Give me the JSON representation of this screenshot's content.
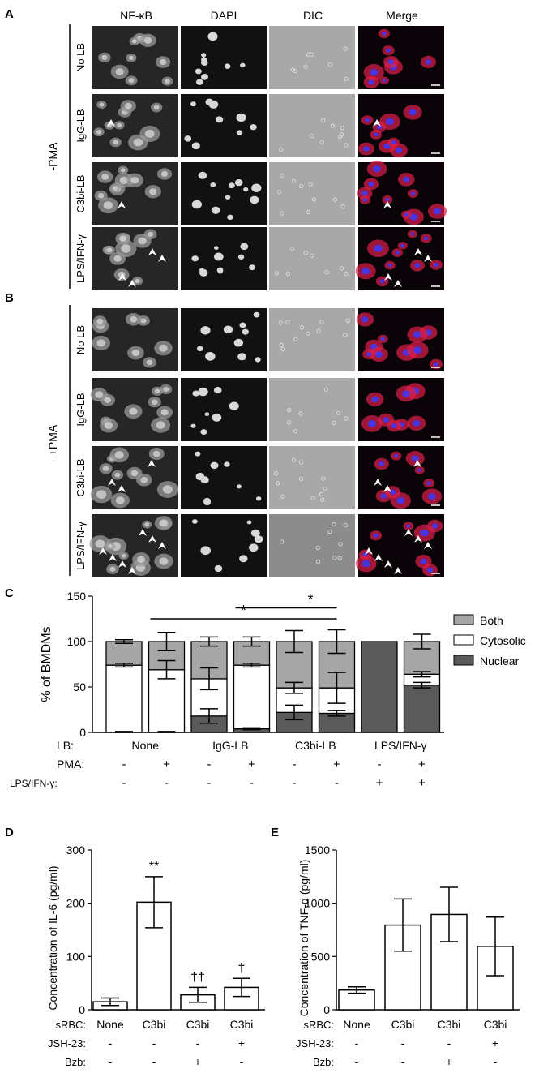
{
  "micrograph": {
    "columns": [
      "NF-κB",
      "DAPI",
      "DIC",
      "Merge"
    ],
    "panel_a": {
      "letter": "A",
      "condition": "-PMA",
      "rows": [
        {
          "label": "No LB",
          "arrowheads": 0
        },
        {
          "label": "IgG-LB",
          "arrowheads": 1
        },
        {
          "label": "C3bi-LB",
          "arrowheads": 1
        },
        {
          "label": "LPS/IFN-γ",
          "arrowheads": 4
        }
      ]
    },
    "panel_b": {
      "letter": "B",
      "condition": "+PMA",
      "rows": [
        {
          "label": "No LB",
          "arrowheads": 0
        },
        {
          "label": "IgG-LB",
          "arrowheads": 0
        },
        {
          "label": "C3bi-LB",
          "arrowheads": 3
        },
        {
          "label": "LPS/IFN-γ",
          "arrowheads": 7
        }
      ]
    },
    "colors": {
      "nfkb_red": "#e0204a",
      "dapi_blue": "#3a3aff",
      "dic_gray": "#a8a8a8"
    }
  },
  "chart_data": [
    {
      "panel": "C",
      "type": "bar",
      "stacked": true,
      "ylabel": "% of BMDMs",
      "ylim": [
        0,
        150
      ],
      "yticks": [
        0,
        50,
        100,
        150
      ],
      "bars": [
        {
          "nuclear": 0,
          "cytosolic": 74,
          "both": 26,
          "err_nuclear": 1,
          "err_cytosolic": 2,
          "err_both": 2
        },
        {
          "nuclear": 0,
          "cytosolic": 69,
          "both": 31,
          "err_nuclear": 1,
          "err_cytosolic": 10,
          "err_both": 10
        },
        {
          "nuclear": 18,
          "cytosolic": 41,
          "both": 41,
          "err_nuclear": 8,
          "err_cytosolic": 12,
          "err_both": 5
        },
        {
          "nuclear": 4,
          "cytosolic": 70,
          "both": 26,
          "err_nuclear": 1,
          "err_cytosolic": 2,
          "err_both": 5
        },
        {
          "nuclear": 22,
          "cytosolic": 27,
          "both": 51,
          "err_nuclear": 8,
          "err_cytosolic": 6,
          "err_both": 12
        },
        {
          "nuclear": 21,
          "cytosolic": 28,
          "both": 51,
          "err_nuclear": 3,
          "err_cytosolic": 17,
          "err_both": 13
        },
        {
          "nuclear": 100,
          "cytosolic": 0,
          "both": 0,
          "err_nuclear": 0,
          "err_cytosolic": 0,
          "err_both": 0
        },
        {
          "nuclear": 52,
          "cytosolic": 12,
          "both": 36,
          "err_nuclear": 3,
          "err_cytosolic": 3,
          "err_both": 8
        }
      ],
      "legend": [
        {
          "name": "Both",
          "color": "#a6a6a6"
        },
        {
          "name": "Cytosolic",
          "color": "#ffffff"
        },
        {
          "name": "Nuclear",
          "color": "#5a5a5a"
        }
      ],
      "legend_position": "right",
      "group_label_title": "LB:",
      "groups": [
        "None",
        "IgG-LB",
        "C3bi-LB",
        "LPS/IFN-γ"
      ],
      "condition_rows": [
        {
          "name": "PMA:",
          "values": [
            "-",
            "+",
            "-",
            "+",
            "-",
            "+",
            "-",
            "+"
          ]
        },
        {
          "name": "LPS/IFN-γ:",
          "values": [
            "-",
            "-",
            "-",
            "-",
            "-",
            "-",
            "+",
            "+"
          ]
        }
      ],
      "significance": [
        {
          "from": 1,
          "to": 5,
          "label": "*",
          "level": 125
        },
        {
          "from": 3,
          "to": 5,
          "label": "*",
          "level": 137
        }
      ]
    },
    {
      "panel": "D",
      "type": "bar",
      "ylabel": "Concentration of IL-6 (pg/ml)",
      "ylim": [
        0,
        300
      ],
      "yticks": [
        0,
        100,
        200,
        300
      ],
      "values": [
        15,
        202,
        28,
        42
      ],
      "errors": [
        7,
        48,
        14,
        17
      ],
      "annotations": [
        "",
        "**",
        "††",
        "†"
      ],
      "condition_rows": [
        {
          "name": "sRBC:",
          "values": [
            "None",
            "C3bi",
            "C3bi",
            "C3bi"
          ]
        },
        {
          "name": "JSH-23:",
          "values": [
            "-",
            "-",
            "-",
            "+"
          ]
        },
        {
          "name": "Bzb:",
          "values": [
            "-",
            "-",
            "+",
            "-"
          ]
        }
      ]
    },
    {
      "panel": "E",
      "type": "bar",
      "ylabel": "Concentration of TNF-α (pg/ml)",
      "ylim": [
        0,
        1500
      ],
      "yticks": [
        0,
        500,
        1000,
        1500
      ],
      "values": [
        185,
        795,
        895,
        595
      ],
      "errors": [
        30,
        245,
        255,
        275
      ],
      "annotations": [
        "",
        "",
        "",
        ""
      ],
      "condition_rows": [
        {
          "name": "sRBC:",
          "values": [
            "None",
            "C3bi",
            "C3bi",
            "C3bi"
          ]
        },
        {
          "name": "JSH-23:",
          "values": [
            "-",
            "-",
            "-",
            "+"
          ]
        },
        {
          "name": "Bzb:",
          "values": [
            "-",
            "-",
            "+",
            "-"
          ]
        }
      ]
    }
  ]
}
